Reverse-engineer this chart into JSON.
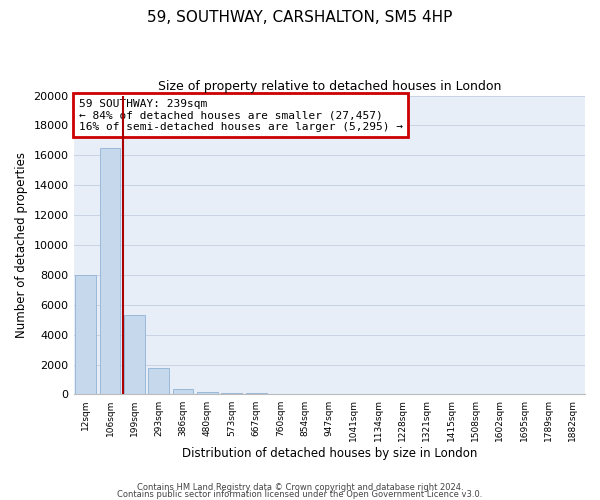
{
  "title": "59, SOUTHWAY, CARSHALTON, SM5 4HP",
  "subtitle": "Size of property relative to detached houses in London",
  "xlabel": "Distribution of detached houses by size in London",
  "ylabel": "Number of detached properties",
  "bar_labels": [
    "12sqm",
    "106sqm",
    "199sqm",
    "293sqm",
    "386sqm",
    "480sqm",
    "573sqm",
    "667sqm",
    "760sqm",
    "854sqm",
    "947sqm",
    "1041sqm",
    "1134sqm",
    "1228sqm",
    "1321sqm",
    "1415sqm",
    "1508sqm",
    "1602sqm",
    "1695sqm",
    "1789sqm",
    "1882sqm"
  ],
  "bar_values": [
    8000,
    16500,
    5300,
    1750,
    380,
    150,
    120,
    80,
    0,
    0,
    0,
    0,
    0,
    0,
    0,
    0,
    0,
    0,
    0,
    0,
    0
  ],
  "bar_color": "#c5d8ec",
  "bar_edge_color": "#9ab8d8",
  "vline_x": 1.55,
  "vline_color": "#aa0000",
  "annotation_title": "59 SOUTHWAY: 239sqm",
  "annotation_line1": "← 84% of detached houses are smaller (27,457)",
  "annotation_line2": "16% of semi-detached houses are larger (5,295) →",
  "annotation_box_color": "#ffffff",
  "annotation_box_edge": "#cc0000",
  "ylim": [
    0,
    20000
  ],
  "yticks": [
    0,
    2000,
    4000,
    6000,
    8000,
    10000,
    12000,
    14000,
    16000,
    18000,
    20000
  ],
  "grid_color": "#c8d4e4",
  "bg_color": "#e8eef8",
  "footer1": "Contains HM Land Registry data © Crown copyright and database right 2024.",
  "footer2": "Contains public sector information licensed under the Open Government Licence v3.0."
}
